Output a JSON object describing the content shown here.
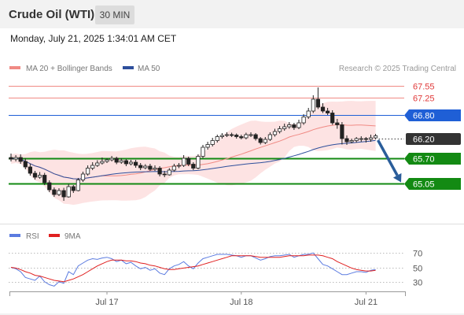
{
  "header": {
    "title": "Crude Oil (WTI)",
    "interval": "30 MIN"
  },
  "datetime": "Monday, July 21, 2025 1:34:01 AM CET",
  "legend": {
    "ma_bb_label": "MA 20 + Bollinger Bands",
    "ma50_label": "MA 50",
    "credit": "Research © 2025 Trading Central",
    "rsi_label": "RSI",
    "rsi_ma_label": "9MA"
  },
  "colors": {
    "ma_bb": "#f08a84",
    "ma50": "#2e4f9c",
    "band_fill": "#fde0e0",
    "up_candle": "#ffffff",
    "down_candle": "#222222",
    "resistance": "#f08a84",
    "pivot": "#1f5fd6",
    "support": "#138a13",
    "current": "#333333",
    "arrow": "#2a5d9a",
    "rsi": "#5b7be0",
    "rsi_ma": "#e02020"
  },
  "chart_data": [
    {
      "type": "candlestick",
      "ylim": [
        64.6,
        67.7
      ],
      "x_labels": [
        "Jul 17",
        "Jul 18",
        "Jul 21"
      ],
      "open": [
        65.72,
        65.68,
        65.72,
        65.62,
        65.48,
        65.32,
        65.22,
        65.27,
        65.08,
        64.9,
        64.78,
        64.88,
        64.72,
        64.98,
        64.88,
        65.15,
        65.3,
        65.45,
        65.52,
        65.58,
        65.62,
        65.66,
        65.7,
        65.6,
        65.64,
        65.56,
        65.6,
        65.52,
        65.46,
        65.5,
        65.42,
        65.45,
        65.3,
        65.28,
        65.4,
        65.5,
        65.52,
        65.7,
        65.55,
        65.45,
        65.75,
        65.98,
        66.05,
        66.15,
        66.25,
        66.28,
        66.3,
        66.29,
        66.25,
        66.22,
        66.3,
        66.3,
        66.2,
        66.1,
        66.18,
        66.3,
        66.38,
        66.45,
        66.5,
        66.55,
        66.48,
        66.6,
        66.75,
        66.9,
        67.2,
        67.0,
        66.9,
        66.85,
        66.6,
        66.55,
        66.2,
        66.12,
        66.15,
        66.2,
        66.2,
        66.18,
        66.22
      ],
      "close": [
        65.68,
        65.72,
        65.62,
        65.48,
        65.32,
        65.22,
        65.27,
        65.08,
        64.9,
        64.78,
        64.88,
        64.72,
        64.98,
        64.88,
        65.15,
        65.3,
        65.45,
        65.52,
        65.58,
        65.62,
        65.66,
        65.7,
        65.6,
        65.64,
        65.56,
        65.6,
        65.52,
        65.46,
        65.5,
        65.42,
        65.45,
        65.3,
        65.28,
        65.4,
        65.5,
        65.52,
        65.7,
        65.55,
        65.45,
        65.75,
        65.98,
        66.05,
        66.15,
        66.25,
        66.28,
        66.3,
        66.29,
        66.25,
        66.22,
        66.3,
        66.3,
        66.2,
        66.1,
        66.18,
        66.3,
        66.38,
        66.45,
        66.5,
        66.55,
        66.48,
        66.6,
        66.75,
        66.9,
        67.2,
        67.0,
        66.9,
        66.85,
        66.6,
        66.55,
        66.2,
        66.12,
        66.15,
        66.2,
        66.2,
        66.18,
        66.22,
        66.27
      ],
      "high": [
        65.82,
        65.78,
        65.8,
        65.7,
        65.56,
        65.38,
        65.35,
        65.33,
        65.14,
        64.96,
        64.94,
        64.95,
        65.05,
        65.02,
        65.2,
        65.36,
        65.52,
        65.6,
        65.65,
        65.72,
        65.7,
        65.76,
        65.74,
        65.7,
        65.68,
        65.66,
        65.66,
        65.58,
        65.55,
        65.56,
        65.52,
        65.5,
        65.38,
        65.45,
        65.56,
        65.58,
        65.78,
        65.74,
        65.6,
        65.8,
        66.04,
        66.12,
        66.22,
        66.3,
        66.34,
        66.36,
        66.35,
        66.33,
        66.3,
        66.35,
        66.36,
        66.34,
        66.24,
        66.24,
        66.36,
        66.45,
        66.52,
        66.58,
        66.62,
        66.6,
        66.68,
        66.82,
        66.98,
        67.3,
        67.5,
        67.1,
        66.98,
        66.92,
        66.7,
        66.62,
        66.28,
        66.2,
        66.24,
        66.26,
        66.24,
        66.3,
        66.32
      ],
      "low": [
        65.62,
        65.62,
        65.56,
        65.42,
        65.26,
        65.16,
        65.18,
        65.02,
        64.84,
        64.72,
        64.74,
        64.62,
        64.7,
        64.82,
        64.86,
        65.1,
        65.26,
        65.4,
        65.48,
        65.54,
        65.58,
        65.62,
        65.55,
        65.56,
        65.5,
        65.52,
        65.46,
        65.4,
        65.42,
        65.38,
        65.38,
        65.24,
        65.22,
        65.26,
        65.36,
        65.45,
        65.48,
        65.5,
        65.4,
        65.42,
        65.7,
        65.92,
        66.0,
        66.1,
        66.2,
        66.24,
        66.24,
        66.2,
        66.18,
        66.18,
        66.24,
        66.15,
        66.05,
        66.06,
        66.14,
        66.25,
        66.33,
        66.4,
        66.45,
        66.42,
        66.44,
        66.55,
        66.7,
        66.85,
        66.95,
        66.85,
        66.8,
        66.55,
        66.45,
        66.05,
        66.04,
        66.08,
        66.1,
        66.12,
        66.1,
        66.12,
        66.18
      ],
      "levels": [
        {
          "value": 67.55,
          "label": "67.55",
          "role": "resistance"
        },
        {
          "value": 67.25,
          "label": "67.25",
          "role": "resistance"
        },
        {
          "value": 66.8,
          "label": "66.80",
          "role": "pivot"
        },
        {
          "value": 66.2,
          "label": "66.20",
          "role": "current"
        },
        {
          "value": 65.7,
          "label": "65.70",
          "role": "support"
        },
        {
          "value": 65.05,
          "label": "65.05",
          "role": "support"
        }
      ],
      "arrow": {
        "from": 66.2,
        "to": 65.05
      }
    },
    {
      "type": "line",
      "ylim": [
        20,
        80
      ],
      "y_ticks": [
        70,
        50,
        30
      ],
      "series": [
        {
          "name": "RSI",
          "values": [
            50,
            48,
            44,
            36,
            34,
            32,
            38,
            30,
            26,
            24,
            30,
            28,
            44,
            40,
            52,
            56,
            60,
            62,
            61,
            63,
            64,
            62,
            58,
            60,
            55,
            57,
            52,
            48,
            50,
            46,
            48,
            42,
            40,
            48,
            52,
            54,
            58,
            52,
            48,
            56,
            62,
            64,
            66,
            68,
            68,
            68,
            67,
            66,
            64,
            66,
            66,
            63,
            60,
            62,
            65,
            66,
            66,
            67,
            68,
            64,
            66,
            68,
            68,
            70,
            62,
            54,
            52,
            48,
            44,
            40,
            40,
            42,
            44,
            44,
            43,
            46,
            47
          ]
        },
        {
          "name": "9MA",
          "values": [
            50,
            49,
            47,
            44,
            42,
            39,
            38,
            36,
            34,
            32,
            31,
            30,
            32,
            34,
            37,
            40,
            44,
            48,
            52,
            55,
            58,
            60,
            60,
            60,
            59,
            59,
            58,
            56,
            55,
            53,
            52,
            50,
            48,
            47,
            47,
            48,
            49,
            50,
            51,
            52,
            54,
            56,
            58,
            60,
            62,
            64,
            66,
            66,
            66,
            66,
            66,
            65,
            64,
            64,
            64,
            64,
            64,
            65,
            66,
            66,
            66,
            66,
            67,
            67,
            67,
            66,
            64,
            62,
            58,
            55,
            52,
            49,
            47,
            46,
            45,
            45,
            46
          ]
        }
      ]
    }
  ]
}
